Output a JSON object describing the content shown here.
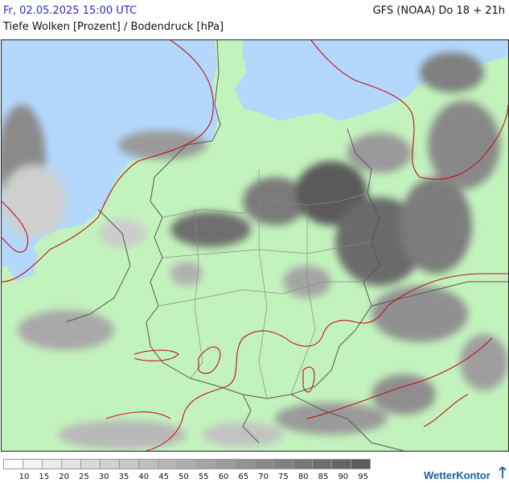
{
  "header": {
    "date": "Fr, 02.05.2025 15:00 UTC",
    "model": "GFS (NOAA) Do 18 + 21h",
    "title": "Tiefe Wolken [Prozent] / Bodendruck [hPa]"
  },
  "map": {
    "region": "Deutschland",
    "colors": {
      "land": "#c3f3bd",
      "sea": "#b4d8fb",
      "border": "#555555",
      "isobar": "#c0101a"
    }
  },
  "legend": {
    "ticks": [
      "10",
      "15",
      "20",
      "25",
      "30",
      "35",
      "40",
      "45",
      "50",
      "55",
      "60",
      "65",
      "70",
      "75",
      "80",
      "85",
      "90",
      "95"
    ],
    "colors": [
      "#ffffff",
      "#f4f4f4",
      "#ececec",
      "#e3e3e3",
      "#dadada",
      "#d1d1d1",
      "#c8c8c8",
      "#bfbfbf",
      "#b6b6b6",
      "#adadad",
      "#a4a4a4",
      "#9b9b9b",
      "#929292",
      "#898989",
      "#808080",
      "#777777",
      "#6e6e6e",
      "#656565",
      "#5c5c5c"
    ]
  },
  "brand": {
    "name": "WetterKontor",
    "icon": "wetterkontor-logo-icon"
  }
}
